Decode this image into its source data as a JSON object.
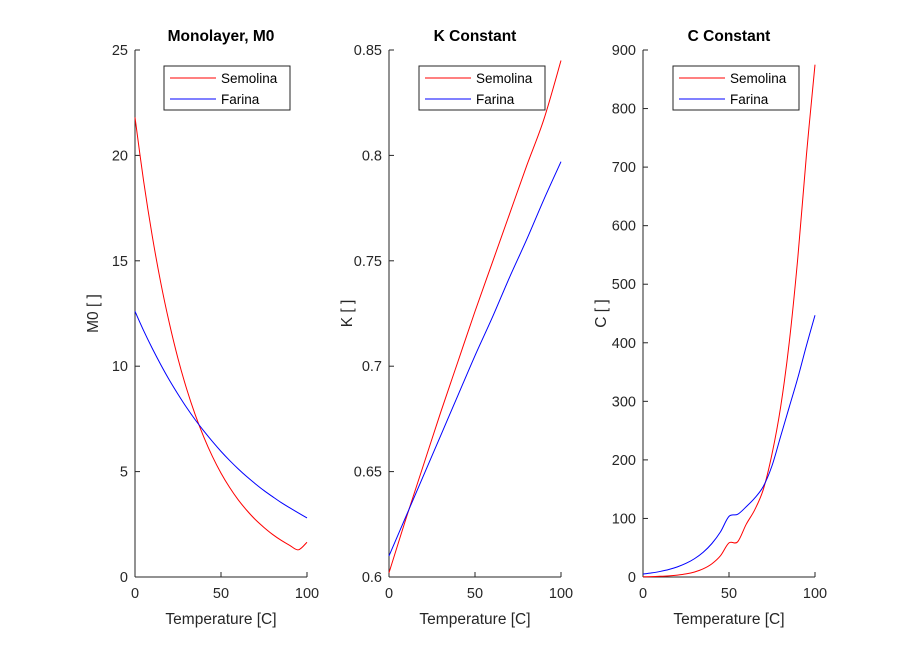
{
  "colors": {
    "Semolina": "#ff0000",
    "Farina": "#0000ff",
    "axis": "#262626"
  },
  "chart_data": [
    {
      "type": "line",
      "title": "Monolayer, M0",
      "xlabel": "Temperature [C]",
      "ylabel": "M0 [ ]",
      "xlim": [
        0,
        100
      ],
      "ylim": [
        0,
        25
      ],
      "xticks": [
        "0",
        "50",
        "100"
      ],
      "yticks": [
        "0",
        "5",
        "10",
        "15",
        "20",
        "25"
      ],
      "grid": false,
      "legend_position": "top-right",
      "x": [
        0,
        5,
        10,
        15,
        20,
        25,
        30,
        35,
        40,
        45,
        50,
        55,
        60,
        65,
        70,
        75,
        80,
        85,
        90,
        95,
        100
      ],
      "series": [
        {
          "name": "Semolina",
          "values": [
            21.8,
            18.79,
            16.19,
            13.95,
            12.03,
            10.36,
            8.93,
            7.7,
            6.64,
            5.72,
            4.93,
            4.25,
            3.66,
            3.16,
            2.72,
            2.35,
            2.02,
            1.74,
            1.5,
            1.29,
            1.65
          ]
        },
        {
          "name": "Farina",
          "values": [
            12.6,
            11.69,
            10.85,
            10.07,
            9.34,
            8.67,
            8.04,
            7.46,
            6.93,
            6.43,
            5.96,
            5.53,
            5.13,
            4.76,
            4.42,
            4.1,
            3.81,
            3.53,
            3.28,
            3.04,
            2.8
          ]
        }
      ]
    },
    {
      "type": "line",
      "title": "K Constant",
      "xlabel": "Temperature [C]",
      "ylabel": "K [ ]",
      "xlim": [
        0,
        100
      ],
      "ylim": [
        0.6,
        0.85
      ],
      "xticks": [
        "0",
        "50",
        "100"
      ],
      "yticks": [
        "0.6",
        "0.65",
        "0.7",
        "0.75",
        "0.8",
        "0.85"
      ],
      "grid": false,
      "legend_position": "top-right",
      "x": [
        0,
        10,
        20,
        30,
        40,
        50,
        60,
        70,
        80,
        90,
        100
      ],
      "series": [
        {
          "name": "Semolina",
          "values": [
            0.602,
            0.628,
            0.653,
            0.678,
            0.702,
            0.726,
            0.749,
            0.772,
            0.795,
            0.817,
            0.845
          ]
        },
        {
          "name": "Farina",
          "values": [
            0.61,
            0.629,
            0.648,
            0.667,
            0.686,
            0.705,
            0.723,
            0.742,
            0.76,
            0.779,
            0.797
          ]
        }
      ]
    },
    {
      "type": "line",
      "title": "C Constant",
      "xlabel": "Temperature [C]",
      "ylabel": "C [ ]",
      "xlim": [
        0,
        100
      ],
      "ylim": [
        0,
        900
      ],
      "xticks": [
        "0",
        "50",
        "100"
      ],
      "yticks": [
        "0",
        "100",
        "200",
        "300",
        "400",
        "500",
        "600",
        "700",
        "800",
        "900"
      ],
      "grid": false,
      "legend_position": "top-right",
      "x": [
        0,
        5,
        10,
        15,
        20,
        25,
        30,
        35,
        40,
        45,
        50,
        55,
        60,
        65,
        70,
        75,
        80,
        85,
        90,
        95,
        100
      ],
      "series": [
        {
          "name": "Semolina",
          "values": [
            0.5,
            0.7,
            1.2,
            2.0,
            3.3,
            5.3,
            8.6,
            13.9,
            22.4,
            36.1,
            58.2,
            60,
            90,
            115,
            150,
            210,
            290,
            400,
            545,
            720,
            875
          ]
        },
        {
          "name": "Farina",
          "values": [
            5,
            7,
            9.5,
            12.8,
            17.3,
            23.3,
            31.4,
            42.3,
            57.0,
            76.8,
            103.5,
            107,
            120,
            135,
            155,
            190,
            240,
            290,
            340,
            395,
            447
          ]
        }
      ]
    }
  ]
}
